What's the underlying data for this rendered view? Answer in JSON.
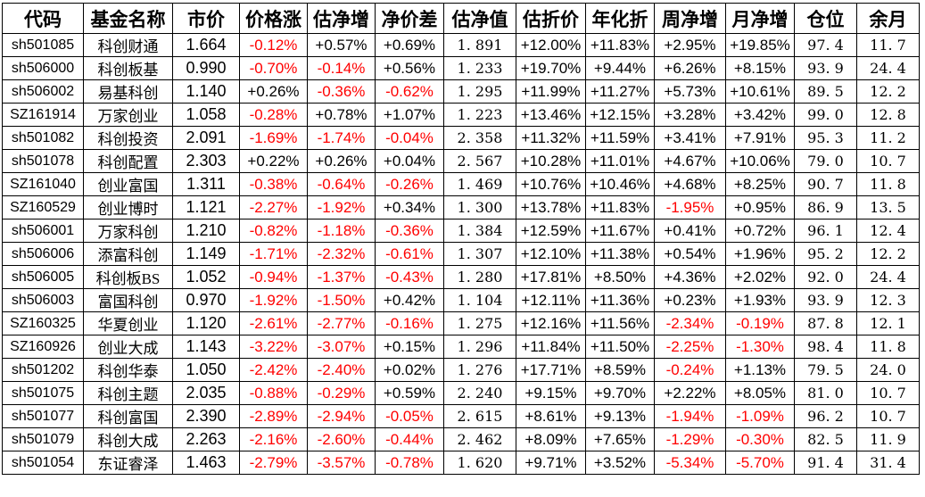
{
  "colors": {
    "negative_value": "#ff0000",
    "positive_value": "#000000",
    "grid_border": "#000000",
    "cell_background": "#ffffff"
  },
  "table": {
    "columns": [
      "代码",
      "基金名称",
      "市价",
      "价格涨",
      "估净增",
      "净价差",
      "估净值",
      "估折价",
      "年化折",
      "周净增",
      "月净增",
      "仓位",
      "余月"
    ],
    "rows": [
      [
        "sh501085",
        "科创财通",
        "1.664",
        "-0.12%",
        "+0.57%",
        "+0.69%",
        "1. 891",
        "+12.00%",
        "+11.83%",
        "+2.95%",
        "+19.85%",
        "97. 4",
        "11. 7"
      ],
      [
        "sh506000",
        "科创板基",
        "0.990",
        "-0.70%",
        "-0.14%",
        "+0.56%",
        "1. 233",
        "+19.70%",
        "+9.44%",
        "+6.26%",
        "+8.15%",
        "93. 9",
        "24. 4"
      ],
      [
        "sh506002",
        "易基科创",
        "1.140",
        "+0.26%",
        "-0.36%",
        "-0.62%",
        "1. 295",
        "+11.99%",
        "+11.27%",
        "+5.73%",
        "+10.61%",
        "89. 5",
        "12. 2"
      ],
      [
        "SZ161914",
        "万家创业",
        "1.058",
        "-0.28%",
        "+0.78%",
        "+1.07%",
        "1. 223",
        "+13.46%",
        "+12.15%",
        "+3.28%",
        "+3.42%",
        "99. 0",
        "12. 8"
      ],
      [
        "sh501082",
        "科创投资",
        "2.091",
        "-1.69%",
        "-1.74%",
        "-0.04%",
        "2. 358",
        "+11.32%",
        "+11.59%",
        "+3.41%",
        "+7.91%",
        "95. 3",
        "11. 2"
      ],
      [
        "sh501078",
        "科创配置",
        "2.303",
        "+0.22%",
        "+0.26%",
        "+0.04%",
        "2. 567",
        "+10.28%",
        "+11.01%",
        "+4.67%",
        "+10.06%",
        "79. 0",
        "10. 7"
      ],
      [
        "SZ161040",
        "创业富国",
        "1.311",
        "-0.38%",
        "-0.64%",
        "-0.26%",
        "1. 469",
        "+10.76%",
        "+10.46%",
        "+4.68%",
        "+8.25%",
        "90. 7",
        "11. 8"
      ],
      [
        "SZ160529",
        "创业博时",
        "1.121",
        "-2.27%",
        "-1.92%",
        "+0.34%",
        "1. 300",
        "+13.78%",
        "+11.83%",
        "-1.95%",
        "+0.95%",
        "86. 9",
        "13. 5"
      ],
      [
        "sh506001",
        "万家科创",
        "1.210",
        "-0.82%",
        "-1.18%",
        "-0.36%",
        "1. 384",
        "+12.59%",
        "+11.67%",
        "+0.41%",
        "+0.72%",
        "96. 1",
        "12. 4"
      ],
      [
        "sh506006",
        "添富科创",
        "1.149",
        "-1.71%",
        "-2.32%",
        "-0.61%",
        "1. 307",
        "+12.10%",
        "+11.38%",
        "+0.54%",
        "+1.96%",
        "95. 2",
        "12. 2"
      ],
      [
        "sh506005",
        "科创板BS",
        "1.052",
        "-0.94%",
        "-1.37%",
        "-0.43%",
        "1. 280",
        "+17.81%",
        "+8.50%",
        "+4.36%",
        "+2.02%",
        "92. 0",
        "24. 4"
      ],
      [
        "sh506003",
        "富国科创",
        "0.970",
        "-1.92%",
        "-1.50%",
        "+0.42%",
        "1. 104",
        "+12.11%",
        "+11.36%",
        "+0.23%",
        "+1.93%",
        "93. 9",
        "12. 3"
      ],
      [
        "SZ160325",
        "华夏创业",
        "1.120",
        "-2.61%",
        "-2.77%",
        "-0.16%",
        "1. 275",
        "+12.16%",
        "+11.56%",
        "-2.34%",
        "-0.19%",
        "87. 8",
        "12. 1"
      ],
      [
        "SZ160926",
        "创业大成",
        "1.143",
        "-3.22%",
        "-3.07%",
        "+0.15%",
        "1. 296",
        "+11.84%",
        "+11.50%",
        "-2.25%",
        "-1.30%",
        "98. 4",
        "11. 8"
      ],
      [
        "sh501202",
        "科创华泰",
        "1.050",
        "-2.42%",
        "-2.40%",
        "+0.02%",
        "1. 276",
        "+17.71%",
        "+8.59%",
        "-0.24%",
        "+1.13%",
        "79. 5",
        "24. 0"
      ],
      [
        "sh501075",
        "科创主题",
        "2.035",
        "-0.88%",
        "-0.29%",
        "+0.59%",
        "2. 240",
        "+9.15%",
        "+9.70%",
        "+2.22%",
        "+8.05%",
        "81. 0",
        "10. 7"
      ],
      [
        "sh501077",
        "科创富国",
        "2.390",
        "-2.89%",
        "-2.94%",
        "-0.05%",
        "2. 615",
        "+8.61%",
        "+9.13%",
        "-1.94%",
        "-1.09%",
        "96. 2",
        "10. 7"
      ],
      [
        "sh501079",
        "科创大成",
        "2.263",
        "-2.16%",
        "-2.60%",
        "-0.44%",
        "2. 462",
        "+8.09%",
        "+7.65%",
        "-1.29%",
        "-0.30%",
        "82. 5",
        "11. 9"
      ],
      [
        "sh501054",
        "东证睿泽",
        "1.463",
        "-2.79%",
        "-3.57%",
        "-0.78%",
        "1. 620",
        "+9.71%",
        "+3.52%",
        "-5.34%",
        "-5.70%",
        "91. 4",
        "31. 4"
      ]
    ]
  }
}
